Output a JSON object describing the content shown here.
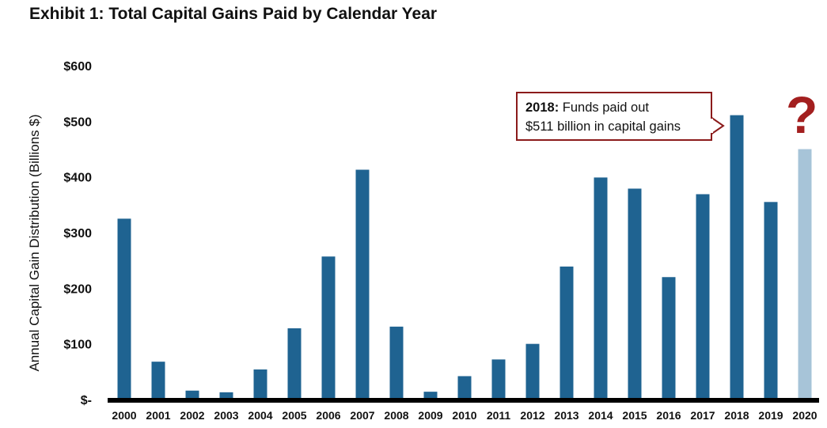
{
  "title": "Exhibit 1: Total Capital Gains Paid by Calendar Year",
  "annotation": {
    "year_label": "2018:",
    "line1": "Funds paid out",
    "line2": "$511 billion in capital gains"
  },
  "question_mark": "?",
  "colors": {
    "bar": "#1f6391",
    "bar_estimate": "#a7c4d8",
    "callout_border": "#8b1b1b",
    "question": "#a31f1f"
  },
  "chart_data": {
    "type": "bar",
    "title": "Exhibit 1: Total Capital Gains Paid by Calendar Year",
    "xlabel": "",
    "ylabel": "Annual Capital Gain Distribution (Billions $)",
    "ylim": [
      0,
      600
    ],
    "yticks": [
      0,
      100,
      200,
      300,
      400,
      500,
      600
    ],
    "ytick_labels": [
      "$-",
      "$100",
      "$200",
      "$300",
      "$400",
      "$500",
      "$600"
    ],
    "categories": [
      "2000",
      "2001",
      "2002",
      "2003",
      "2004",
      "2005",
      "2006",
      "2007",
      "2008",
      "2009",
      "2010",
      "2011",
      "2012",
      "2013",
      "2014",
      "2015",
      "2016",
      "2017",
      "2018",
      "2019",
      "2020"
    ],
    "values": [
      325,
      68,
      16,
      13,
      54,
      128,
      257,
      413,
      131,
      14,
      42,
      72,
      100,
      239,
      399,
      379,
      220,
      369,
      511,
      355,
      450
    ],
    "estimate_categories": [
      "2020"
    ],
    "grid": false
  }
}
